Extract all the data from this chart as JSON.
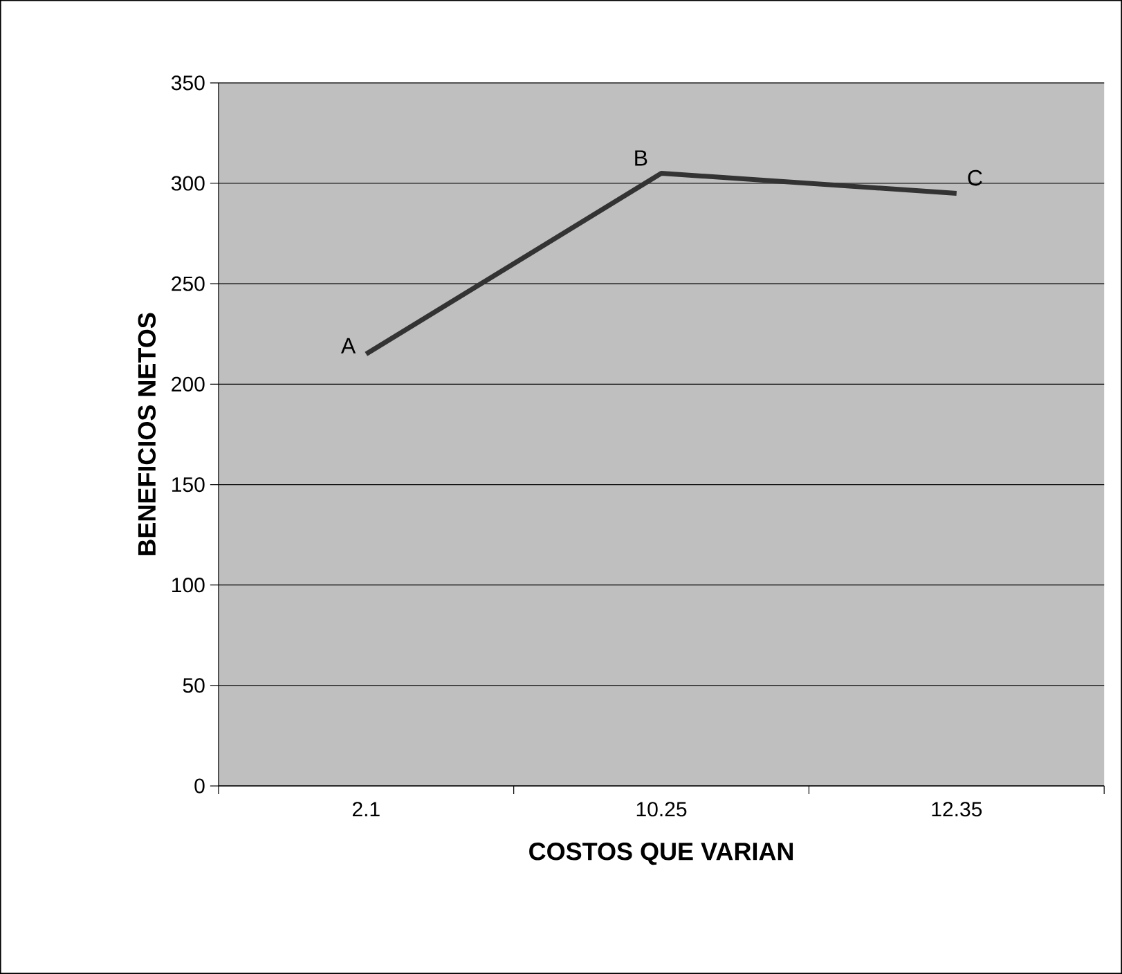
{
  "chart_data": {
    "type": "line",
    "xlabel": "COSTOS QUE VARIAN",
    "ylabel": "BENEFICIOS NETOS",
    "categories": [
      "2.1",
      "10.25",
      "12.35"
    ],
    "series": [
      {
        "color": "#333333",
        "values": [
          215,
          305,
          295
        ]
      }
    ],
    "ylim": [
      0,
      350
    ],
    "yticks": [
      0,
      50,
      100,
      150,
      200,
      250,
      300,
      350
    ],
    "grid": "y",
    "marker": "none",
    "line_style": "solid",
    "annotations": [
      {
        "text": "A",
        "x": "2.1",
        "y": 215
      },
      {
        "text": "B",
        "x": "10.25",
        "y": 305
      },
      {
        "text": "C",
        "x": "12.35",
        "y": 295
      }
    ]
  }
}
